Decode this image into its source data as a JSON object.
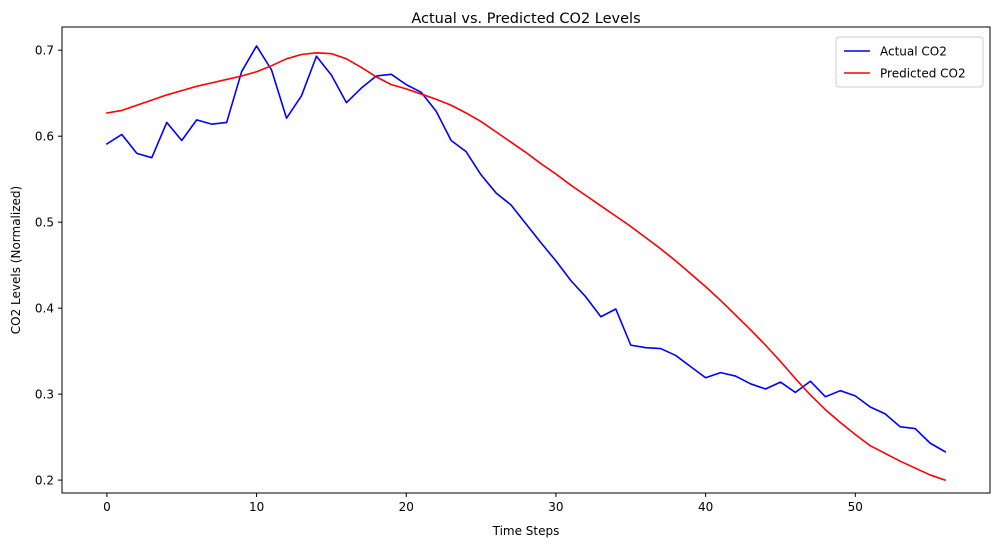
{
  "chart_data": {
    "type": "line",
    "title": "Actual vs. Predicted CO2 Levels",
    "xlabel": "Time Steps",
    "ylabel": "CO2 Levels (Normalized)",
    "xlim": [
      -3,
      59
    ],
    "ylim": [
      0.185,
      0.727
    ],
    "xticks": [
      0,
      10,
      20,
      30,
      40,
      50
    ],
    "yticks": [
      0.2,
      0.3,
      0.4,
      0.5,
      0.6,
      0.7
    ],
    "xtick_labels": [
      "0",
      "10",
      "20",
      "30",
      "40",
      "50"
    ],
    "ytick_labels": [
      "0.2",
      "0.3",
      "0.4",
      "0.5",
      "0.6",
      "0.7"
    ],
    "legend_position": "top-right",
    "grid": false,
    "x": [
      0,
      1,
      2,
      3,
      4,
      5,
      6,
      7,
      8,
      9,
      10,
      11,
      12,
      13,
      14,
      15,
      16,
      17,
      18,
      19,
      20,
      21,
      22,
      23,
      24,
      25,
      26,
      27,
      28,
      29,
      30,
      31,
      32,
      33,
      34,
      35,
      36,
      37,
      38,
      39,
      40,
      41,
      42,
      43,
      44,
      45,
      46,
      47,
      48,
      49,
      50,
      51,
      52,
      53,
      54,
      55,
      56
    ],
    "series": [
      {
        "name": "Actual CO2",
        "color": "#0000ff",
        "values": [
          0.591,
          0.602,
          0.58,
          0.575,
          0.616,
          0.595,
          0.619,
          0.614,
          0.616,
          0.675,
          0.705,
          0.677,
          0.621,
          0.647,
          0.693,
          0.671,
          0.639,
          0.656,
          0.67,
          0.672,
          0.66,
          0.651,
          0.629,
          0.595,
          0.582,
          0.555,
          0.534,
          0.52,
          0.498,
          0.476,
          0.455,
          0.432,
          0.413,
          0.39,
          0.399,
          0.357,
          0.354,
          0.353,
          0.345,
          0.332,
          0.319,
          0.325,
          0.321,
          0.312,
          0.306,
          0.314,
          0.302,
          0.315,
          0.297,
          0.304,
          0.298,
          0.285,
          0.277,
          0.262,
          0.26,
          0.243,
          0.233
        ]
      },
      {
        "name": "Predicted CO2",
        "color": "#ff0000",
        "values": [
          0.627,
          0.63,
          0.636,
          0.642,
          0.648,
          0.653,
          0.658,
          0.662,
          0.666,
          0.67,
          0.675,
          0.682,
          0.69,
          0.695,
          0.697,
          0.696,
          0.69,
          0.68,
          0.669,
          0.66,
          0.655,
          0.649,
          0.643,
          0.636,
          0.627,
          0.617,
          0.605,
          0.593,
          0.581,
          0.568,
          0.556,
          0.543,
          0.531,
          0.519,
          0.507,
          0.495,
          0.482,
          0.469,
          0.455,
          0.44,
          0.425,
          0.409,
          0.392,
          0.375,
          0.357,
          0.338,
          0.318,
          0.299,
          0.282,
          0.267,
          0.253,
          0.24,
          0.231,
          0.222,
          0.214,
          0.206,
          0.2
        ]
      }
    ]
  }
}
